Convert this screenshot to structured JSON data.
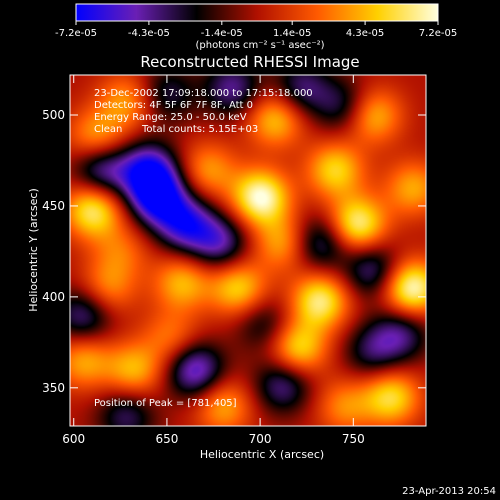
{
  "colorbar": {
    "tick_labels": [
      "-7.2e-05",
      "-4.3e-05",
      "-1.4e-05",
      "1.4e-05",
      "4.3e-05",
      "7.2e-05"
    ],
    "tick_values": [
      -7.2e-05,
      -4.3e-05,
      -1.4e-05,
      1.4e-05,
      4.3e-05,
      7.2e-05
    ],
    "range": [
      -7.2e-05,
      7.2e-05
    ],
    "units_label": "(photons cm⁻² s⁻¹ asec⁻²)",
    "colormap_stops": [
      "#0000ff",
      "#6a1fb4",
      "#000000",
      "#b01000",
      "#ff5a00",
      "#ffd000",
      "#ffffe0"
    ]
  },
  "chart_data": {
    "type": "heatmap",
    "title": "Reconstructed RHESSI Image",
    "xlabel": "Heliocentric X (arcsec)",
    "ylabel": "Heliocentric Y (arcsec)",
    "xlim": [
      598,
      789
    ],
    "ylim": [
      329,
      522
    ],
    "x_ticks": [
      600,
      650,
      700,
      750
    ],
    "y_ticks": [
      350,
      400,
      450,
      500
    ],
    "annotations": [
      "23-Dec-2002 17:09:18.000 to 17:15:18.000",
      "Detectors: 4F 5F 6F 7F 8F, Att 0",
      "Energy Range: 25.0 - 50.0 keV",
      "Clean",
      "Total counts: 5.15E+03"
    ],
    "peak_label": "Position of Peak = [781,405]",
    "peak_position": [
      781,
      405
    ],
    "value_unit": "photons cm^-2 s^-1 asec^-2",
    "value_range": [
      -7.2e-05,
      7.2e-05
    ],
    "grid": false,
    "sources": [
      {
        "x": 612,
        "y": 488,
        "v": 0.55
      },
      {
        "x": 628,
        "y": 508,
        "v": 0.5
      },
      {
        "x": 610,
        "y": 448,
        "v": 0.85
      },
      {
        "x": 618,
        "y": 405,
        "v": 0.45
      },
      {
        "x": 605,
        "y": 365,
        "v": 0.55
      },
      {
        "x": 632,
        "y": 360,
        "v": 0.6
      },
      {
        "x": 625,
        "y": 425,
        "v": 0.35
      },
      {
        "x": 658,
        "y": 408,
        "v": 0.6
      },
      {
        "x": 652,
        "y": 378,
        "v": 0.4
      },
      {
        "x": 672,
        "y": 470,
        "v": 0.5
      },
      {
        "x": 688,
        "y": 405,
        "v": 0.7
      },
      {
        "x": 680,
        "y": 340,
        "v": 0.55
      },
      {
        "x": 700,
        "y": 455,
        "v": 1.0
      },
      {
        "x": 708,
        "y": 498,
        "v": 0.65
      },
      {
        "x": 712,
        "y": 430,
        "v": 0.55
      },
      {
        "x": 720,
        "y": 372,
        "v": 0.75
      },
      {
        "x": 732,
        "y": 398,
        "v": 0.85
      },
      {
        "x": 740,
        "y": 470,
        "v": 0.7
      },
      {
        "x": 752,
        "y": 440,
        "v": 0.9
      },
      {
        "x": 760,
        "y": 500,
        "v": 0.65
      },
      {
        "x": 770,
        "y": 345,
        "v": 0.75
      },
      {
        "x": 781,
        "y": 405,
        "v": 1.0
      },
      {
        "x": 782,
        "y": 460,
        "v": 0.55
      },
      {
        "x": 745,
        "y": 340,
        "v": 0.45
      },
      {
        "x": 640,
        "y": 470,
        "v": -0.85
      },
      {
        "x": 645,
        "y": 455,
        "v": -1.0
      },
      {
        "x": 615,
        "y": 470,
        "v": -0.7
      },
      {
        "x": 605,
        "y": 390,
        "v": -0.6
      },
      {
        "x": 660,
        "y": 440,
        "v": -0.8
      },
      {
        "x": 678,
        "y": 430,
        "v": -0.65
      },
      {
        "x": 628,
        "y": 335,
        "v": -0.5
      },
      {
        "x": 665,
        "y": 360,
        "v": -0.8
      },
      {
        "x": 712,
        "y": 352,
        "v": -0.6
      },
      {
        "x": 702,
        "y": 385,
        "v": -0.4
      },
      {
        "x": 732,
        "y": 430,
        "v": -0.6
      },
      {
        "x": 722,
        "y": 515,
        "v": -0.55
      },
      {
        "x": 760,
        "y": 415,
        "v": -0.6
      },
      {
        "x": 775,
        "y": 380,
        "v": -0.55
      },
      {
        "x": 760,
        "y": 370,
        "v": -0.45
      },
      {
        "x": 745,
        "y": 505,
        "v": -0.5
      },
      {
        "x": 685,
        "y": 515,
        "v": -0.6
      },
      {
        "x": 650,
        "y": 512,
        "v": -0.45
      }
    ]
  },
  "footer": {
    "timestamp": "23-Apr-2013 20:54"
  }
}
